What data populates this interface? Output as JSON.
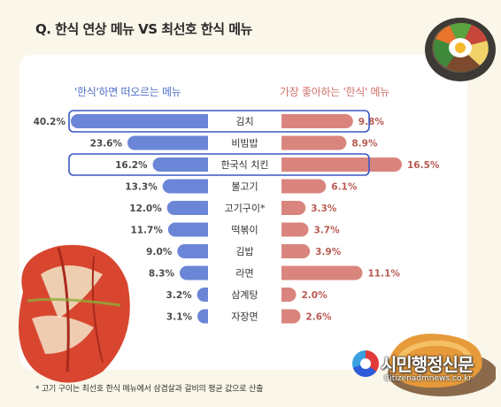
{
  "title": "Q. 한식 연상 메뉴 VS 최선호 한식 메뉴",
  "footnote": "* 고기 구이는 최선호 한식 메뉴에서 삼겹살과 갈비의 평균 값으로 산출",
  "watermark": {
    "name": "시민행정신문",
    "url": "Citizenadmnews.co.kr"
  },
  "colors": {
    "left_bar": "#6b86d6",
    "right_bar": "#d9857e",
    "left_text": "#4f6fc7",
    "right_text": "#d0706a",
    "highlight_border": "#3a58c4"
  },
  "icons": {
    "bowl": "bibimbap-bowl-illustration",
    "kimchi": "kimchi-illustration",
    "cutlet": "fried-cutlet-illustration"
  },
  "chart_data": {
    "type": "bar",
    "subtype": "diverging-horizontal",
    "categories": [
      "김치",
      "비빔밥",
      "한국식 치킨",
      "불고기",
      "고기구이*",
      "떡볶이",
      "김밥",
      "라면",
      "삼계탕",
      "자장면"
    ],
    "series": [
      {
        "name": "'한식'하면 떠오르는 메뉴",
        "values": [
          40.2,
          23.6,
          16.2,
          13.3,
          12.0,
          11.7,
          9.0,
          8.3,
          3.2,
          3.1
        ],
        "side": "left"
      },
      {
        "name": "가장 좋아하는 '한식' 메뉴",
        "values": [
          9.8,
          8.9,
          16.5,
          6.1,
          3.3,
          3.7,
          3.9,
          11.1,
          2.0,
          2.6
        ],
        "side": "right"
      }
    ],
    "value_labels_left": [
      "40.2%",
      "23.6%",
      "16.2%",
      "13.3%",
      "12.0%",
      "11.7%",
      "9.0%",
      "8.3%",
      "3.2%",
      "3.1%"
    ],
    "value_labels_right": [
      "9.8%",
      "8.9%",
      "16.5%",
      "6.1%",
      "3.3%",
      "3.7%",
      "3.9%",
      "11.1%",
      "2.0%",
      "2.6%"
    ],
    "highlighted_categories": [
      "김치",
      "한국식 치킨"
    ],
    "unit": "%"
  }
}
